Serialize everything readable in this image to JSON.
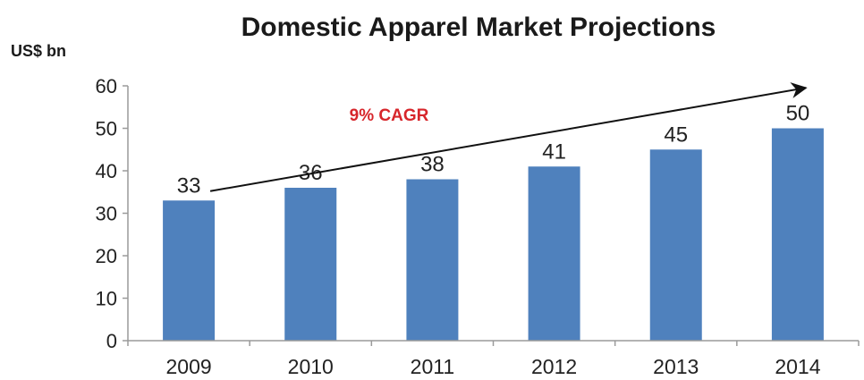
{
  "chart_data": {
    "type": "bar",
    "title": "Domestic Apparel Market Projections",
    "ylabel": "US$ bn",
    "xlabel": "",
    "categories": [
      "2009",
      "2010",
      "2011",
      "2012",
      "2013",
      "2014"
    ],
    "values": [
      33,
      36,
      38,
      41,
      45,
      50
    ],
    "data_labels": [
      "33",
      "36",
      "38",
      "41",
      "45",
      "50"
    ],
    "ylim": [
      0,
      60
    ],
    "yticks": [
      "0",
      "10",
      "20",
      "30",
      "40",
      "50",
      "60"
    ],
    "grid": false,
    "bar_color": "#4f81bd",
    "annotation": {
      "text": "9% CAGR",
      "color": "#d7262b",
      "arrow_from": {
        "category": "2009",
        "value": 39
      },
      "arrow_to": {
        "category": "2014",
        "value": 61
      }
    }
  }
}
